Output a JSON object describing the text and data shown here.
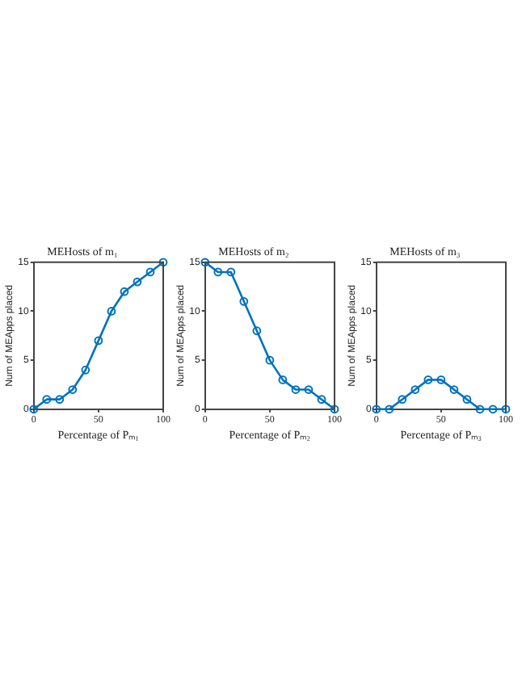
{
  "chart_data": [
    {
      "type": "line",
      "title": "MEHosts of m₁",
      "xlabel": "Percentage of Pₘ₁",
      "ylabel": "Num of MEApps placed",
      "x": [
        0,
        10,
        20,
        30,
        40,
        50,
        60,
        70,
        80,
        90,
        100
      ],
      "series": [
        {
          "color": "#0072bd",
          "values": [
            0,
            1,
            1,
            2,
            4,
            7,
            10,
            12,
            13,
            14,
            15
          ]
        }
      ],
      "xlim": [
        0,
        100
      ],
      "xticks": [
        0,
        50,
        100
      ],
      "ylim": [
        0,
        15
      ],
      "yticks": [
        0,
        5,
        10,
        15
      ],
      "grid": false,
      "legend": false,
      "marker": "circle",
      "line_style": "solid"
    },
    {
      "type": "line",
      "title": "MEHosts of m₂",
      "xlabel": "Percentage of Pₘ₂",
      "ylabel": "Num of MEApps placed",
      "x": [
        0,
        10,
        20,
        30,
        40,
        50,
        60,
        70,
        80,
        90,
        100
      ],
      "series": [
        {
          "color": "#0072bd",
          "values": [
            15,
            14,
            14,
            11,
            8,
            5,
            3,
            2,
            2,
            1,
            0
          ]
        }
      ],
      "xlim": [
        0,
        100
      ],
      "xticks": [
        0,
        50,
        100
      ],
      "ylim": [
        0,
        15
      ],
      "yticks": [
        0,
        5,
        10,
        15
      ],
      "grid": false,
      "legend": false,
      "marker": "circle",
      "line_style": "solid"
    },
    {
      "type": "line",
      "title": "MEHosts of m₃",
      "xlabel": "Percentage of Pₘ₃",
      "ylabel": "Num of MEApps placed",
      "x": [
        0,
        10,
        20,
        30,
        40,
        50,
        60,
        70,
        80,
        90,
        100
      ],
      "series": [
        {
          "color": "#0072bd",
          "values": [
            0,
            0,
            1,
            2,
            3,
            3,
            2,
            1,
            0,
            0,
            0
          ]
        }
      ],
      "xlim": [
        0,
        100
      ],
      "xticks": [
        0,
        50,
        100
      ],
      "ylim": [
        0,
        15
      ],
      "yticks": [
        0,
        5,
        10,
        15
      ],
      "grid": false,
      "legend": false,
      "marker": "circle",
      "line_style": "solid"
    }
  ]
}
